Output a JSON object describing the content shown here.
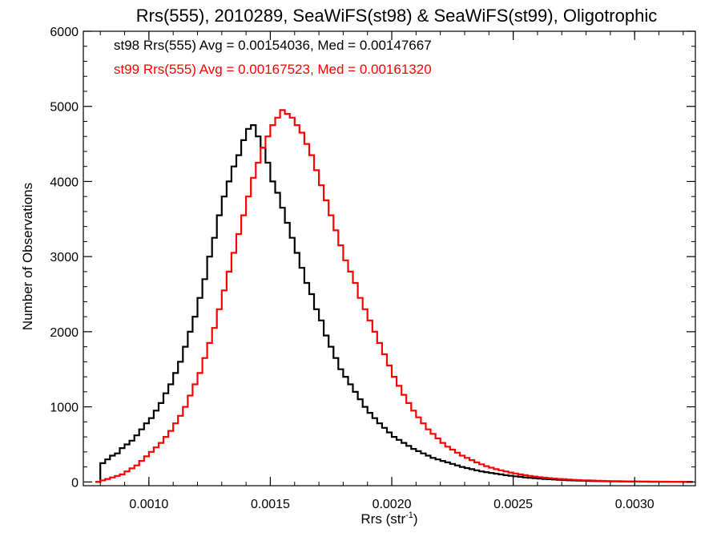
{
  "chart_data": {
    "type": "line",
    "title": "Rrs(555), 2010289, SeaWiFS(st98) & SeaWiFS(st99), Oligotrophic",
    "xlabel_main": "Rrs (str",
    "xlabel_sup": "-1",
    "xlabel_close": ")",
    "ylabel": "Number of Observations",
    "xlim": [
      0.00073,
      0.00325
    ],
    "ylim": [
      -50,
      6000
    ],
    "x_ticks": [
      0.001,
      0.0015,
      0.002,
      0.0025,
      0.003
    ],
    "x_tick_labels": [
      "0.0010",
      "0.0015",
      "0.0020",
      "0.0025",
      "0.0030"
    ],
    "y_ticks": [
      0,
      1000,
      2000,
      3000,
      4000,
      5000,
      6000
    ],
    "y_tick_labels": [
      "0",
      "1000",
      "2000",
      "3000",
      "4000",
      "5000",
      "6000"
    ],
    "annotations": [
      {
        "text": "st98 Rrs(555) Avg = 0.00154036, Med = 0.00147667",
        "color": "#000000"
      },
      {
        "text": "st99 Rrs(555) Avg = 0.00167523, Med = 0.00161320",
        "color": "#ff0000"
      }
    ],
    "series": [
      {
        "color": "#000000",
        "points": [
          [
            0.00079,
            0
          ],
          [
            0.00081,
            250
          ],
          [
            0.00083,
            300
          ],
          [
            0.00085,
            350
          ],
          [
            0.00087,
            380
          ],
          [
            0.00089,
            450
          ],
          [
            0.00091,
            500
          ],
          [
            0.00093,
            550
          ],
          [
            0.00095,
            620
          ],
          [
            0.00097,
            700
          ],
          [
            0.00099,
            780
          ],
          [
            0.00101,
            850
          ],
          [
            0.00103,
            950
          ],
          [
            0.00105,
            1050
          ],
          [
            0.00107,
            1180
          ],
          [
            0.00109,
            1300
          ],
          [
            0.00111,
            1450
          ],
          [
            0.00113,
            1600
          ],
          [
            0.00115,
            1800
          ],
          [
            0.00117,
            2000
          ],
          [
            0.00119,
            2200
          ],
          [
            0.00121,
            2450
          ],
          [
            0.00123,
            2700
          ],
          [
            0.00125,
            3000
          ],
          [
            0.00127,
            3250
          ],
          [
            0.00129,
            3550
          ],
          [
            0.00131,
            3800
          ],
          [
            0.00133,
            4000
          ],
          [
            0.00135,
            4200
          ],
          [
            0.00137,
            4350
          ],
          [
            0.00139,
            4550
          ],
          [
            0.00141,
            4700
          ],
          [
            0.00143,
            4750
          ],
          [
            0.00145,
            4600
          ],
          [
            0.00147,
            4450
          ],
          [
            0.00149,
            4250
          ],
          [
            0.00151,
            4000
          ],
          [
            0.00153,
            3850
          ],
          [
            0.00155,
            3650
          ],
          [
            0.00157,
            3450
          ],
          [
            0.00159,
            3250
          ],
          [
            0.00161,
            3050
          ],
          [
            0.00163,
            2850
          ],
          [
            0.00165,
            2650
          ],
          [
            0.00167,
            2500
          ],
          [
            0.00169,
            2300
          ],
          [
            0.00171,
            2150
          ],
          [
            0.00173,
            1950
          ],
          [
            0.00175,
            1800
          ],
          [
            0.00177,
            1650
          ],
          [
            0.00179,
            1500
          ],
          [
            0.00181,
            1400
          ],
          [
            0.00183,
            1300
          ],
          [
            0.00185,
            1200
          ],
          [
            0.00187,
            1100
          ],
          [
            0.00189,
            1000
          ],
          [
            0.00191,
            920
          ],
          [
            0.00193,
            850
          ],
          [
            0.00195,
            780
          ],
          [
            0.00197,
            720
          ],
          [
            0.00199,
            660
          ],
          [
            0.00201,
            600
          ],
          [
            0.00203,
            560
          ],
          [
            0.00205,
            520
          ],
          [
            0.00207,
            480
          ],
          [
            0.00209,
            440
          ],
          [
            0.00211,
            410
          ],
          [
            0.00213,
            380
          ],
          [
            0.00215,
            350
          ],
          [
            0.00217,
            320
          ],
          [
            0.00219,
            300
          ],
          [
            0.00221,
            280
          ],
          [
            0.00223,
            260
          ],
          [
            0.00225,
            240
          ],
          [
            0.00227,
            220
          ],
          [
            0.00229,
            200
          ],
          [
            0.00231,
            185
          ],
          [
            0.00233,
            170
          ],
          [
            0.00235,
            155
          ],
          [
            0.00237,
            140
          ],
          [
            0.00239,
            130
          ],
          [
            0.00241,
            120
          ],
          [
            0.00243,
            110
          ],
          [
            0.00245,
            100
          ],
          [
            0.00247,
            90
          ],
          [
            0.00249,
            82
          ],
          [
            0.00251,
            75
          ],
          [
            0.00253,
            68
          ],
          [
            0.00255,
            60
          ],
          [
            0.00257,
            55
          ],
          [
            0.00259,
            50
          ],
          [
            0.00261,
            45
          ],
          [
            0.00263,
            40
          ],
          [
            0.00265,
            36
          ],
          [
            0.00267,
            32
          ],
          [
            0.00269,
            28
          ],
          [
            0.00271,
            25
          ],
          [
            0.00273,
            22
          ],
          [
            0.00275,
            20
          ],
          [
            0.00277,
            18
          ],
          [
            0.00279,
            16
          ],
          [
            0.00281,
            14
          ],
          [
            0.00283,
            12
          ],
          [
            0.00285,
            11
          ],
          [
            0.00287,
            10
          ],
          [
            0.00289,
            9
          ],
          [
            0.00291,
            8
          ],
          [
            0.00293,
            7
          ],
          [
            0.00295,
            6
          ],
          [
            0.00297,
            5
          ],
          [
            0.00299,
            4
          ],
          [
            0.00301,
            4
          ],
          [
            0.00303,
            3
          ],
          [
            0.00305,
            3
          ],
          [
            0.00307,
            2
          ],
          [
            0.00309,
            2
          ],
          [
            0.00311,
            2
          ],
          [
            0.00313,
            1
          ],
          [
            0.00315,
            1
          ],
          [
            0.00317,
            1
          ],
          [
            0.00319,
            1
          ],
          [
            0.00321,
            0
          ],
          [
            0.00323,
            0
          ]
        ]
      },
      {
        "color": "#ff0000",
        "points": [
          [
            0.00079,
            0
          ],
          [
            0.00081,
            20
          ],
          [
            0.00083,
            40
          ],
          [
            0.00085,
            60
          ],
          [
            0.00087,
            80
          ],
          [
            0.00089,
            100
          ],
          [
            0.00091,
            140
          ],
          [
            0.00093,
            180
          ],
          [
            0.00095,
            220
          ],
          [
            0.00097,
            280
          ],
          [
            0.00099,
            340
          ],
          [
            0.00101,
            400
          ],
          [
            0.00103,
            460
          ],
          [
            0.00105,
            520
          ],
          [
            0.00107,
            600
          ],
          [
            0.00109,
            680
          ],
          [
            0.00111,
            780
          ],
          [
            0.00113,
            880
          ],
          [
            0.00115,
            1000
          ],
          [
            0.00117,
            1150
          ],
          [
            0.00119,
            1300
          ],
          [
            0.00121,
            1450
          ],
          [
            0.00123,
            1650
          ],
          [
            0.00125,
            1850
          ],
          [
            0.00127,
            2050
          ],
          [
            0.00129,
            2300
          ],
          [
            0.00131,
            2550
          ],
          [
            0.00133,
            2800
          ],
          [
            0.00135,
            3050
          ],
          [
            0.00137,
            3300
          ],
          [
            0.00139,
            3550
          ],
          [
            0.00141,
            3800
          ],
          [
            0.00143,
            4050
          ],
          [
            0.00145,
            4250
          ],
          [
            0.00147,
            4450
          ],
          [
            0.00149,
            4600
          ],
          [
            0.00151,
            4750
          ],
          [
            0.00153,
            4850
          ],
          [
            0.00155,
            4950
          ],
          [
            0.00157,
            4900
          ],
          [
            0.00159,
            4850
          ],
          [
            0.00161,
            4750
          ],
          [
            0.00163,
            4650
          ],
          [
            0.00165,
            4500
          ],
          [
            0.00167,
            4350
          ],
          [
            0.00169,
            4150
          ],
          [
            0.00171,
            3950
          ],
          [
            0.00173,
            3750
          ],
          [
            0.00175,
            3550
          ],
          [
            0.00177,
            3350
          ],
          [
            0.00179,
            3150
          ],
          [
            0.00181,
            2950
          ],
          [
            0.00183,
            2800
          ],
          [
            0.00185,
            2650
          ],
          [
            0.00187,
            2450
          ],
          [
            0.00189,
            2300
          ],
          [
            0.00191,
            2150
          ],
          [
            0.00193,
            2000
          ],
          [
            0.00195,
            1850
          ],
          [
            0.00197,
            1700
          ],
          [
            0.00199,
            1550
          ],
          [
            0.00201,
            1400
          ],
          [
            0.00203,
            1280
          ],
          [
            0.00205,
            1160
          ],
          [
            0.00207,
            1050
          ],
          [
            0.00209,
            950
          ],
          [
            0.00211,
            860
          ],
          [
            0.00213,
            780
          ],
          [
            0.00215,
            700
          ],
          [
            0.00217,
            640
          ],
          [
            0.00219,
            580
          ],
          [
            0.00221,
            520
          ],
          [
            0.00223,
            470
          ],
          [
            0.00225,
            430
          ],
          [
            0.00227,
            390
          ],
          [
            0.00229,
            350
          ],
          [
            0.00231,
            320
          ],
          [
            0.00233,
            290
          ],
          [
            0.00235,
            260
          ],
          [
            0.00237,
            235
          ],
          [
            0.00239,
            210
          ],
          [
            0.00241,
            190
          ],
          [
            0.00243,
            170
          ],
          [
            0.00245,
            155
          ],
          [
            0.00247,
            140
          ],
          [
            0.00249,
            125
          ],
          [
            0.00251,
            112
          ],
          [
            0.00253,
            100
          ],
          [
            0.00255,
            90
          ],
          [
            0.00257,
            80
          ],
          [
            0.00259,
            72
          ],
          [
            0.00261,
            64
          ],
          [
            0.00263,
            57
          ],
          [
            0.00265,
            50
          ],
          [
            0.00267,
            45
          ],
          [
            0.00269,
            40
          ],
          [
            0.00271,
            36
          ],
          [
            0.00273,
            32
          ],
          [
            0.00275,
            28
          ],
          [
            0.00277,
            25
          ],
          [
            0.00279,
            22
          ],
          [
            0.00281,
            20
          ],
          [
            0.00283,
            18
          ],
          [
            0.00285,
            16
          ],
          [
            0.00287,
            14
          ],
          [
            0.00289,
            12
          ],
          [
            0.00291,
            11
          ],
          [
            0.00293,
            10
          ],
          [
            0.00295,
            9
          ],
          [
            0.00297,
            8
          ],
          [
            0.00299,
            7
          ],
          [
            0.00301,
            6
          ],
          [
            0.00303,
            5
          ],
          [
            0.00305,
            5
          ],
          [
            0.00307,
            4
          ],
          [
            0.00309,
            4
          ],
          [
            0.00311,
            3
          ],
          [
            0.00313,
            3
          ],
          [
            0.00315,
            2
          ],
          [
            0.00317,
            2
          ],
          [
            0.00319,
            2
          ],
          [
            0.00321,
            1
          ],
          [
            0.00323,
            1
          ]
        ]
      }
    ]
  }
}
